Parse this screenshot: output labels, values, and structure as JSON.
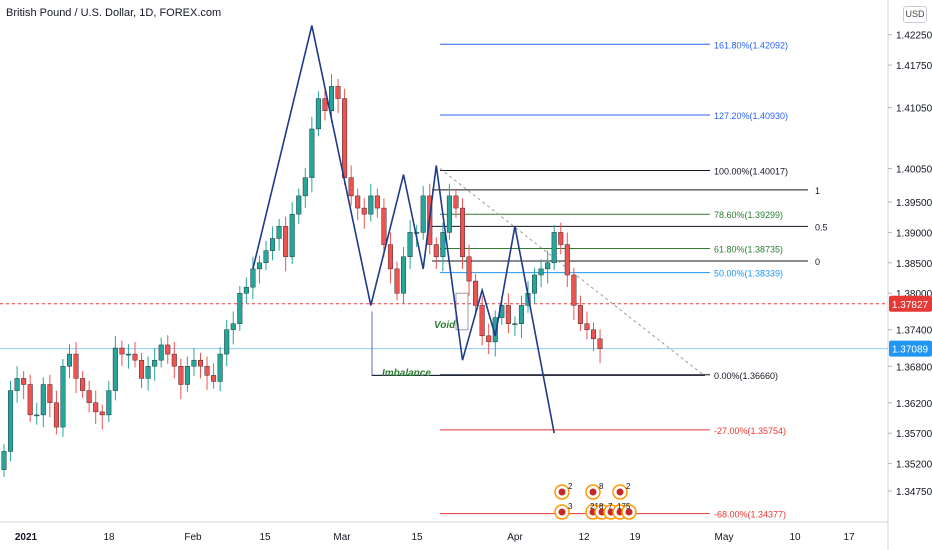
{
  "header": {
    "title": "British Pound / U.S. Dollar, 1D, FOREX.com",
    "currency_button": "USD"
  },
  "chart_data": {
    "type": "candlestick",
    "y_min": 1.3424,
    "y_max": 1.4282,
    "y_ticks": [
      1.4225,
      1.4175,
      1.4105,
      1.4005,
      1.395,
      1.39,
      1.385,
      1.38,
      1.374,
      1.368,
      1.362,
      1.357,
      1.352,
      1.3475
    ],
    "y_tick_labels": [
      "1.42250",
      "1.41750",
      "1.41050",
      "1.40050",
      "1.39500",
      "1.39000",
      "1.38500",
      "1.38000",
      "1.37400",
      "1.36800",
      "1.36200",
      "1.35700",
      "1.35200",
      "1.34750"
    ],
    "x_ticks": [
      "2021",
      "18",
      "Feb",
      "15",
      "Mar",
      "15",
      "Apr",
      "12",
      "19",
      "May",
      "10",
      "17"
    ],
    "price_tags": [
      {
        "label": "1.37827",
        "value": 1.37827,
        "color": "#e53935",
        "line": "dashed"
      },
      {
        "label": "1.37089",
        "value": 1.37089,
        "color": "#2196f3",
        "line": "solid"
      }
    ],
    "candles_o": [
      1.351,
      1.354,
      1.364,
      1.366,
      1.365,
      1.36,
      1.36,
      1.365,
      1.362,
      1.358,
      1.368,
      1.37,
      1.366,
      1.364,
      1.362,
      1.3605,
      1.36,
      1.364,
      1.371,
      1.37,
      1.37,
      1.369,
      1.366,
      1.368,
      1.369,
      1.3715,
      1.37,
      1.368,
      1.365,
      1.368,
      1.369,
      1.368,
      1.3665,
      1.3655,
      1.37,
      1.374,
      1.375,
      1.38,
      1.381,
      1.384,
      1.385,
      1.387,
      1.389,
      1.391,
      1.386,
      1.393,
      1.396,
      1.399,
      1.407,
      1.412,
      1.41,
      1.414,
      1.412,
      1.399,
      1.396,
      1.394,
      1.393,
      1.396,
      1.394,
      1.388,
      1.384,
      1.38,
      1.386,
      1.39,
      1.39,
      1.396,
      1.388,
      1.386,
      1.39,
      1.396,
      1.394,
      1.386,
      1.382,
      1.378,
      1.373,
      1.372,
      1.376,
      1.378,
      1.375,
      1.375,
      1.378,
      1.38,
      1.383,
      1.384,
      1.385,
      1.39,
      1.388,
      1.383,
      1.378,
      1.375,
      1.374,
      1.3725
    ],
    "candles_c": [
      1.354,
      1.364,
      1.366,
      1.365,
      1.36,
      1.36,
      1.365,
      1.362,
      1.358,
      1.368,
      1.37,
      1.366,
      1.364,
      1.362,
      1.3605,
      1.36,
      1.364,
      1.371,
      1.37,
      1.37,
      1.369,
      1.366,
      1.368,
      1.369,
      1.3715,
      1.37,
      1.368,
      1.365,
      1.368,
      1.369,
      1.368,
      1.3665,
      1.3655,
      1.37,
      1.374,
      1.375,
      1.38,
      1.381,
      1.384,
      1.385,
      1.387,
      1.389,
      1.391,
      1.386,
      1.393,
      1.396,
      1.399,
      1.407,
      1.412,
      1.41,
      1.414,
      1.412,
      1.399,
      1.396,
      1.394,
      1.393,
      1.396,
      1.394,
      1.388,
      1.384,
      1.38,
      1.386,
      1.39,
      1.39,
      1.396,
      1.388,
      1.386,
      1.39,
      1.396,
      1.394,
      1.386,
      1.382,
      1.378,
      1.373,
      1.372,
      1.376,
      1.378,
      1.375,
      1.375,
      1.378,
      1.38,
      1.383,
      1.384,
      1.385,
      1.39,
      1.388,
      1.383,
      1.378,
      1.375,
      1.374,
      1.3725,
      1.3709
    ],
    "zigzag": [
      [
        38,
        1.384
      ],
      [
        47,
        1.424
      ],
      [
        56,
        1.378
      ],
      [
        61,
        1.3995
      ],
      [
        64,
        1.384
      ],
      [
        66,
        1.401
      ],
      [
        70,
        1.369
      ],
      [
        73,
        1.3805
      ],
      [
        75,
        1.373
      ],
      [
        78,
        1.391
      ],
      [
        84,
        1.357
      ]
    ],
    "fib_levels": [
      {
        "label": "161.80%(1.42092)",
        "value": 1.42092,
        "color": "#2962ff"
      },
      {
        "label": "127.20%(1.40930)",
        "value": 1.4093,
        "color": "#2962ff"
      },
      {
        "label": "100.00%(1.40017)",
        "value": 1.40017,
        "color": "#131722"
      },
      {
        "label": "78.60%(1.39299)",
        "value": 1.39299,
        "color": "#2e7d32"
      },
      {
        "label": "61.80%(1.38735)",
        "value": 1.38735,
        "color": "#2e7d32"
      },
      {
        "label": "50.00%(1.38339)",
        "value": 1.38339,
        "color": "#2196f3"
      },
      {
        "label": "0.00%(1.36660)",
        "value": 1.3666,
        "color": "#131722"
      },
      {
        "label": "-27.00%(1.35754)",
        "value": 1.35754,
        "color": "#e53935"
      },
      {
        "label": "-68.00%(1.34377)",
        "value": 1.34377,
        "color": "#e53935"
      }
    ],
    "side_levels": [
      {
        "label": "1",
        "value": 1.397
      },
      {
        "label": "0.5",
        "value": 1.391
      },
      {
        "label": "0",
        "value": 1.3853
      }
    ],
    "annotations": {
      "void": "Void",
      "imbalance": "Imbalance"
    },
    "event_badges": {
      "top": [
        "2",
        "8",
        "2"
      ],
      "bottom": [
        "3",
        "21",
        "8",
        "7",
        "17",
        "5"
      ]
    }
  }
}
